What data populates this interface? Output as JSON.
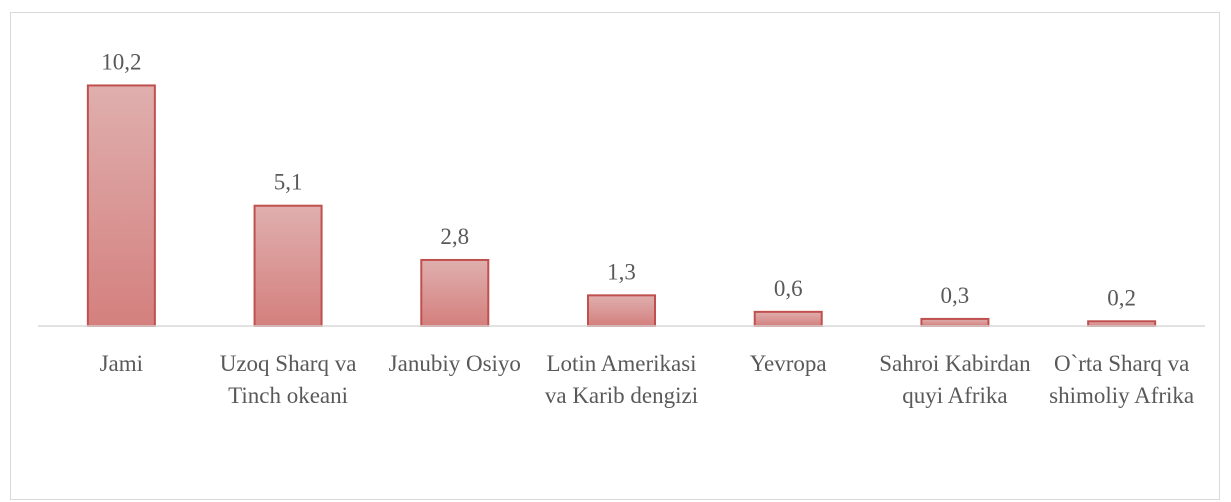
{
  "chart_data": {
    "type": "bar",
    "categories": [
      "Jami",
      "Uzoq Sharq va Tinch okeani",
      "Janubiy Osiyo",
      "Lotin Amerikasi va Karib dengizi",
      "Yevropa",
      "Sahroi Kabirdan quyi Afrika",
      "O`rta Sharq va shimoliy Afrika"
    ],
    "values": [
      10.2,
      5.1,
      2.8,
      1.3,
      0.6,
      0.3,
      0.2
    ],
    "value_labels": [
      "10,2",
      "5,1",
      "2,8",
      "1,3",
      "0,6",
      "0,3",
      "0,2"
    ],
    "color": "#c0504d",
    "ylim": [
      0,
      12
    ]
  }
}
